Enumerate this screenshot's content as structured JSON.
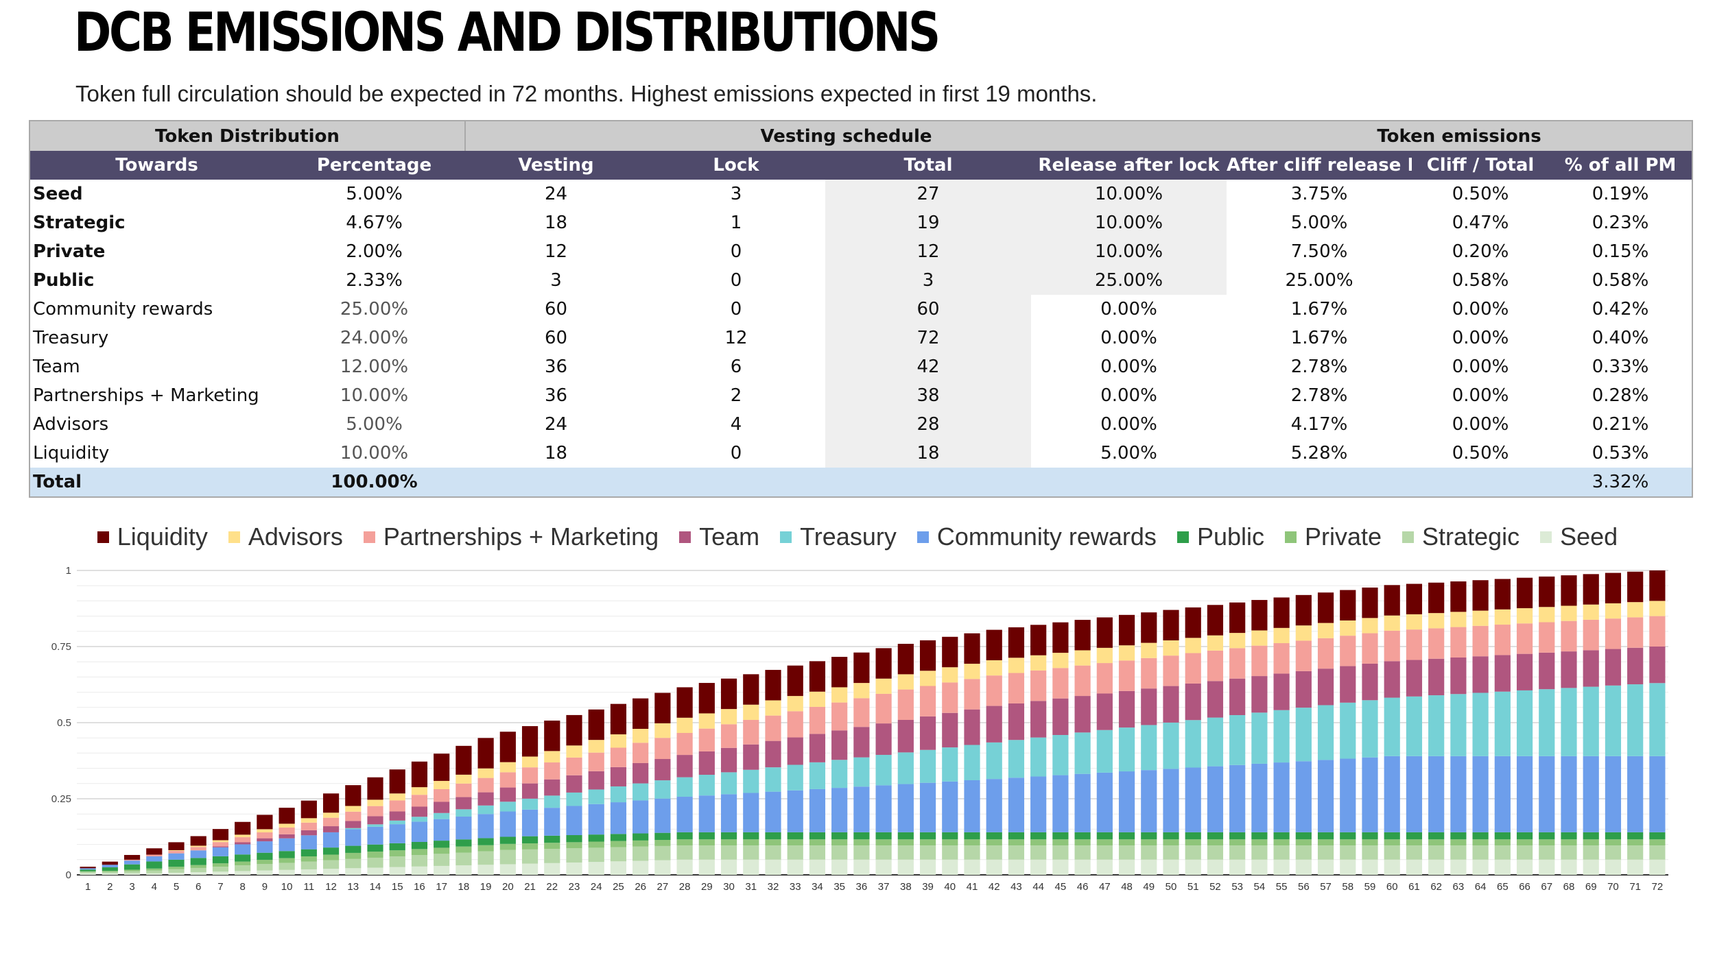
{
  "page": {
    "title": "DCB EMISSIONS AND DISTRIBUTIONS",
    "subtitle": "Token full circulation should be expected in 72 months. Highest emissions expected in first 19 months."
  },
  "table": {
    "group_headers": [
      "Token Distribution",
      "Vesting schedule",
      "Token emissions"
    ],
    "columns": [
      "Towards",
      "Percentage",
      "Vesting",
      "Lock",
      "Total",
      "Release after lock",
      "After cliff release PM",
      "Cliff / Total",
      "% of all PM"
    ],
    "rows": [
      [
        "Seed",
        "5.00%",
        "24",
        "3",
        "27",
        "10.00%",
        "3.75%",
        "0.50%",
        "0.19%"
      ],
      [
        "Strategic",
        "4.67%",
        "18",
        "1",
        "19",
        "10.00%",
        "5.00%",
        "0.47%",
        "0.23%"
      ],
      [
        "Private",
        "2.00%",
        "12",
        "0",
        "12",
        "10.00%",
        "7.50%",
        "0.20%",
        "0.15%"
      ],
      [
        "Public",
        "2.33%",
        "3",
        "0",
        "3",
        "25.00%",
        "25.00%",
        "0.58%",
        "0.58%"
      ],
      [
        "Community rewards",
        "25.00%",
        "60",
        "0",
        "60",
        "0.00%",
        "1.67%",
        "0.00%",
        "0.42%"
      ],
      [
        "Treasury",
        "24.00%",
        "60",
        "12",
        "72",
        "0.00%",
        "1.67%",
        "0.00%",
        "0.40%"
      ],
      [
        "Team",
        "12.00%",
        "36",
        "6",
        "42",
        "0.00%",
        "2.78%",
        "0.00%",
        "0.33%"
      ],
      [
        "Partnerships + Marketing",
        "10.00%",
        "36",
        "2",
        "38",
        "0.00%",
        "2.78%",
        "0.00%",
        "0.28%"
      ],
      [
        "Advisors",
        "5.00%",
        "24",
        "4",
        "28",
        "0.00%",
        "4.17%",
        "0.00%",
        "0.21%"
      ],
      [
        "Liquidity",
        "10.00%",
        "18",
        "0",
        "18",
        "5.00%",
        "5.28%",
        "0.50%",
        "0.53%"
      ]
    ],
    "total": [
      "Total",
      "100.00%",
      "",
      "",
      "",
      "",
      "",
      "",
      "3.32%"
    ]
  },
  "chart_data": {
    "type": "bar",
    "stacked": true,
    "categories": [
      1,
      2,
      3,
      4,
      5,
      6,
      7,
      8,
      9,
      10,
      11,
      12,
      13,
      14,
      15,
      16,
      17,
      18,
      19,
      20,
      21,
      22,
      23,
      24,
      25,
      26,
      27,
      28,
      29,
      30,
      31,
      32,
      33,
      34,
      35,
      36,
      37,
      38,
      39,
      40,
      41,
      42,
      43,
      44,
      45,
      46,
      47,
      48,
      49,
      50,
      51,
      52,
      53,
      54,
      55,
      56,
      57,
      58,
      59,
      60,
      61,
      62,
      63,
      64,
      65,
      66,
      67,
      68,
      69,
      70,
      71,
      72
    ],
    "ylim": [
      0,
      1
    ],
    "yticks": [
      0,
      0.25,
      0.5,
      0.75,
      1
    ],
    "ytick_labels": [
      "0",
      "0.25",
      "0.5",
      "0.75",
      "1"
    ],
    "grid": true,
    "legend_position": "top",
    "series": [
      {
        "name": "Seed",
        "color": "#dcebd6",
        "values": [
          0.005,
          0.005,
          0.005,
          0.005,
          0.0069,
          0.0087,
          0.0106,
          0.0125,
          0.0144,
          0.0162,
          0.0181,
          0.02,
          0.0219,
          0.0237,
          0.0256,
          0.0275,
          0.0294,
          0.0312,
          0.0331,
          0.035,
          0.0369,
          0.0387,
          0.0406,
          0.0425,
          0.0444,
          0.0462,
          0.0481,
          0.05,
          0.05,
          0.05,
          0.05,
          0.05,
          0.05,
          0.05,
          0.05,
          0.05,
          0.05,
          0.05,
          0.05,
          0.05,
          0.05,
          0.05,
          0.05,
          0.05,
          0.05,
          0.05,
          0.05,
          0.05,
          0.05,
          0.05,
          0.05,
          0.05,
          0.05,
          0.05,
          0.05,
          0.05,
          0.05,
          0.05,
          0.05,
          0.05,
          0.05,
          0.05,
          0.05,
          0.05,
          0.05,
          0.05,
          0.05,
          0.05,
          0.05,
          0.05,
          0.05,
          0.05
        ]
      },
      {
        "name": "Strategic",
        "color": "#b6d7a8",
        "values": [
          0.0047,
          0.0047,
          0.007,
          0.0093,
          0.0117,
          0.014,
          0.0163,
          0.0187,
          0.021,
          0.0233,
          0.0257,
          0.028,
          0.0303,
          0.0327,
          0.035,
          0.0373,
          0.0397,
          0.042,
          0.0443,
          0.0467,
          0.0467,
          0.0467,
          0.0467,
          0.0467,
          0.0467,
          0.0467,
          0.0467,
          0.0467,
          0.0467,
          0.0467,
          0.0467,
          0.0467,
          0.0467,
          0.0467,
          0.0467,
          0.0467,
          0.0467,
          0.0467,
          0.0467,
          0.0467,
          0.0467,
          0.0467,
          0.0467,
          0.0467,
          0.0467,
          0.0467,
          0.0467,
          0.0467,
          0.0467,
          0.0467,
          0.0467,
          0.0467,
          0.0467,
          0.0467,
          0.0467,
          0.0467,
          0.0467,
          0.0467,
          0.0467,
          0.0467,
          0.0467,
          0.0467,
          0.0467,
          0.0467,
          0.0467,
          0.0467,
          0.0467,
          0.0467,
          0.0467,
          0.0467,
          0.0467,
          0.0467
        ]
      },
      {
        "name": "Private",
        "color": "#8fc57a",
        "values": [
          0.002,
          0.0035,
          0.005,
          0.0065,
          0.008,
          0.0095,
          0.011,
          0.0125,
          0.014,
          0.0155,
          0.017,
          0.0185,
          0.02,
          0.02,
          0.02,
          0.02,
          0.02,
          0.02,
          0.02,
          0.02,
          0.02,
          0.02,
          0.02,
          0.02,
          0.02,
          0.02,
          0.02,
          0.02,
          0.02,
          0.02,
          0.02,
          0.02,
          0.02,
          0.02,
          0.02,
          0.02,
          0.02,
          0.02,
          0.02,
          0.02,
          0.02,
          0.02,
          0.02,
          0.02,
          0.02,
          0.02,
          0.02,
          0.02,
          0.02,
          0.02,
          0.02,
          0.02,
          0.02,
          0.02,
          0.02,
          0.02,
          0.02,
          0.02,
          0.02,
          0.02,
          0.02,
          0.02,
          0.02,
          0.02,
          0.02,
          0.02,
          0.02,
          0.02,
          0.02,
          0.02,
          0.02,
          0.02
        ]
      },
      {
        "name": "Public",
        "color": "#2e9e4a",
        "values": [
          0.0058,
          0.0117,
          0.0175,
          0.0233,
          0.0233,
          0.0233,
          0.0233,
          0.0233,
          0.0233,
          0.0233,
          0.0233,
          0.0233,
          0.0233,
          0.0233,
          0.0233,
          0.0233,
          0.0233,
          0.0233,
          0.0233,
          0.0233,
          0.0233,
          0.0233,
          0.0233,
          0.0233,
          0.0233,
          0.0233,
          0.0233,
          0.0233,
          0.0233,
          0.0233,
          0.0233,
          0.0233,
          0.0233,
          0.0233,
          0.0233,
          0.0233,
          0.0233,
          0.0233,
          0.0233,
          0.0233,
          0.0233,
          0.0233,
          0.0233,
          0.0233,
          0.0233,
          0.0233,
          0.0233,
          0.0233,
          0.0233,
          0.0233,
          0.0233,
          0.0233,
          0.0233,
          0.0233,
          0.0233,
          0.0233,
          0.0233,
          0.0233,
          0.0233,
          0.0233,
          0.0233,
          0.0233,
          0.0233,
          0.0233,
          0.0233,
          0.0233,
          0.0233,
          0.0233,
          0.0233,
          0.0233,
          0.0233,
          0.0233
        ]
      },
      {
        "name": "Community rewards",
        "color": "#6d9eeb",
        "values": [
          0.0042,
          0.0083,
          0.0125,
          0.0167,
          0.0208,
          0.025,
          0.0292,
          0.0333,
          0.0375,
          0.0417,
          0.0458,
          0.05,
          0.0542,
          0.0583,
          0.0625,
          0.0667,
          0.0708,
          0.075,
          0.0792,
          0.0833,
          0.0875,
          0.0917,
          0.0958,
          0.1,
          0.1042,
          0.1083,
          0.1125,
          0.1167,
          0.1208,
          0.125,
          0.1292,
          0.1333,
          0.1375,
          0.1417,
          0.1458,
          0.15,
          0.1542,
          0.1583,
          0.1625,
          0.1667,
          0.1708,
          0.175,
          0.1792,
          0.1833,
          0.1875,
          0.1917,
          0.1958,
          0.2,
          0.2042,
          0.2083,
          0.2125,
          0.2167,
          0.2208,
          0.225,
          0.2292,
          0.2333,
          0.2375,
          0.2417,
          0.2458,
          0.25,
          0.25,
          0.25,
          0.25,
          0.25,
          0.25,
          0.25,
          0.25,
          0.25,
          0.25,
          0.25,
          0.25,
          0.25
        ]
      },
      {
        "name": "Treasury",
        "color": "#76d1d6",
        "values": [
          0,
          0,
          0,
          0,
          0,
          0,
          0,
          0,
          0,
          0,
          0,
          0,
          0.004,
          0.008,
          0.012,
          0.016,
          0.02,
          0.024,
          0.028,
          0.032,
          0.036,
          0.04,
          0.044,
          0.048,
          0.052,
          0.056,
          0.06,
          0.064,
          0.068,
          0.072,
          0.076,
          0.08,
          0.084,
          0.088,
          0.092,
          0.096,
          0.1,
          0.104,
          0.108,
          0.112,
          0.116,
          0.12,
          0.124,
          0.128,
          0.132,
          0.136,
          0.14,
          0.144,
          0.148,
          0.152,
          0.156,
          0.16,
          0.164,
          0.168,
          0.172,
          0.176,
          0.18,
          0.184,
          0.188,
          0.192,
          0.196,
          0.2,
          0.204,
          0.208,
          0.212,
          0.216,
          0.22,
          0.224,
          0.228,
          0.232,
          0.236,
          0.24
        ]
      },
      {
        "name": "Team",
        "color": "#b0567f",
        "values": [
          0,
          0,
          0,
          0,
          0,
          0,
          0.0033,
          0.0067,
          0.01,
          0.0133,
          0.0167,
          0.02,
          0.0233,
          0.0267,
          0.03,
          0.0333,
          0.0367,
          0.04,
          0.0433,
          0.0467,
          0.05,
          0.0533,
          0.0567,
          0.06,
          0.0633,
          0.0667,
          0.07,
          0.0733,
          0.0767,
          0.08,
          0.0833,
          0.0867,
          0.09,
          0.0933,
          0.0967,
          0.1,
          0.1033,
          0.1067,
          0.11,
          0.1133,
          0.1167,
          0.12,
          0.12,
          0.12,
          0.12,
          0.12,
          0.12,
          0.12,
          0.12,
          0.12,
          0.12,
          0.12,
          0.12,
          0.12,
          0.12,
          0.12,
          0.12,
          0.12,
          0.12,
          0.12,
          0.12,
          0.12,
          0.12,
          0.12,
          0.12,
          0.12,
          0.12,
          0.12,
          0.12,
          0.12,
          0.12,
          0.12
        ]
      },
      {
        "name": "Partnerships + Marketing",
        "color": "#f4a09a",
        "values": [
          0,
          0,
          0.0028,
          0.0056,
          0.0083,
          0.0111,
          0.0139,
          0.0167,
          0.0194,
          0.0222,
          0.025,
          0.0278,
          0.0306,
          0.0333,
          0.0361,
          0.0389,
          0.0417,
          0.0444,
          0.0472,
          0.05,
          0.0528,
          0.0556,
          0.0583,
          0.0611,
          0.0639,
          0.0667,
          0.0694,
          0.0722,
          0.075,
          0.0778,
          0.0806,
          0.0833,
          0.0861,
          0.0889,
          0.0917,
          0.0944,
          0.0972,
          0.1,
          0.1,
          0.1,
          0.1,
          0.1,
          0.1,
          0.1,
          0.1,
          0.1,
          0.1,
          0.1,
          0.1,
          0.1,
          0.1,
          0.1,
          0.1,
          0.1,
          0.1,
          0.1,
          0.1,
          0.1,
          0.1,
          0.1,
          0.1,
          0.1,
          0.1,
          0.1,
          0.1,
          0.1,
          0.1,
          0.1,
          0.1,
          0.1,
          0.1,
          0.1
        ]
      },
      {
        "name": "Advisors",
        "color": "#ffe08a",
        "values": [
          0,
          0,
          0,
          0,
          0.0021,
          0.0042,
          0.0063,
          0.0083,
          0.0104,
          0.0125,
          0.0146,
          0.0167,
          0.0188,
          0.0208,
          0.0229,
          0.025,
          0.0271,
          0.0292,
          0.0313,
          0.0333,
          0.0354,
          0.0375,
          0.0396,
          0.0417,
          0.0438,
          0.0458,
          0.0479,
          0.05,
          0.05,
          0.05,
          0.05,
          0.05,
          0.05,
          0.05,
          0.05,
          0.05,
          0.05,
          0.05,
          0.05,
          0.05,
          0.05,
          0.05,
          0.05,
          0.05,
          0.05,
          0.05,
          0.05,
          0.05,
          0.05,
          0.05,
          0.05,
          0.05,
          0.05,
          0.05,
          0.05,
          0.05,
          0.05,
          0.05,
          0.05,
          0.05,
          0.05,
          0.05,
          0.05,
          0.05,
          0.05,
          0.05,
          0.05,
          0.05,
          0.05,
          0.05,
          0.05,
          0.05
        ]
      },
      {
        "name": "Liquidity",
        "color": "#6b0000",
        "values": [
          0.005,
          0.0103,
          0.0156,
          0.0208,
          0.0261,
          0.0314,
          0.0367,
          0.042,
          0.0472,
          0.0525,
          0.0578,
          0.0631,
          0.0683,
          0.0736,
          0.0789,
          0.0842,
          0.0895,
          0.0947,
          0.1,
          0.1,
          0.1,
          0.1,
          0.1,
          0.1,
          0.1,
          0.1,
          0.1,
          0.1,
          0.1,
          0.1,
          0.1,
          0.1,
          0.1,
          0.1,
          0.1,
          0.1,
          0.1,
          0.1,
          0.1,
          0.1,
          0.1,
          0.1,
          0.1,
          0.1,
          0.1,
          0.1,
          0.1,
          0.1,
          0.1,
          0.1,
          0.1,
          0.1,
          0.1,
          0.1,
          0.1,
          0.1,
          0.1,
          0.1,
          0.1,
          0.1,
          0.1,
          0.1,
          0.1,
          0.1,
          0.1,
          0.1,
          0.1,
          0.1,
          0.1,
          0.1,
          0.1,
          0.1
        ]
      }
    ],
    "legend_order": [
      "Liquidity",
      "Advisors",
      "Partnerships + Marketing",
      "Team",
      "Treasury",
      "Community rewards",
      "Public",
      "Private",
      "Strategic",
      "Seed"
    ]
  }
}
